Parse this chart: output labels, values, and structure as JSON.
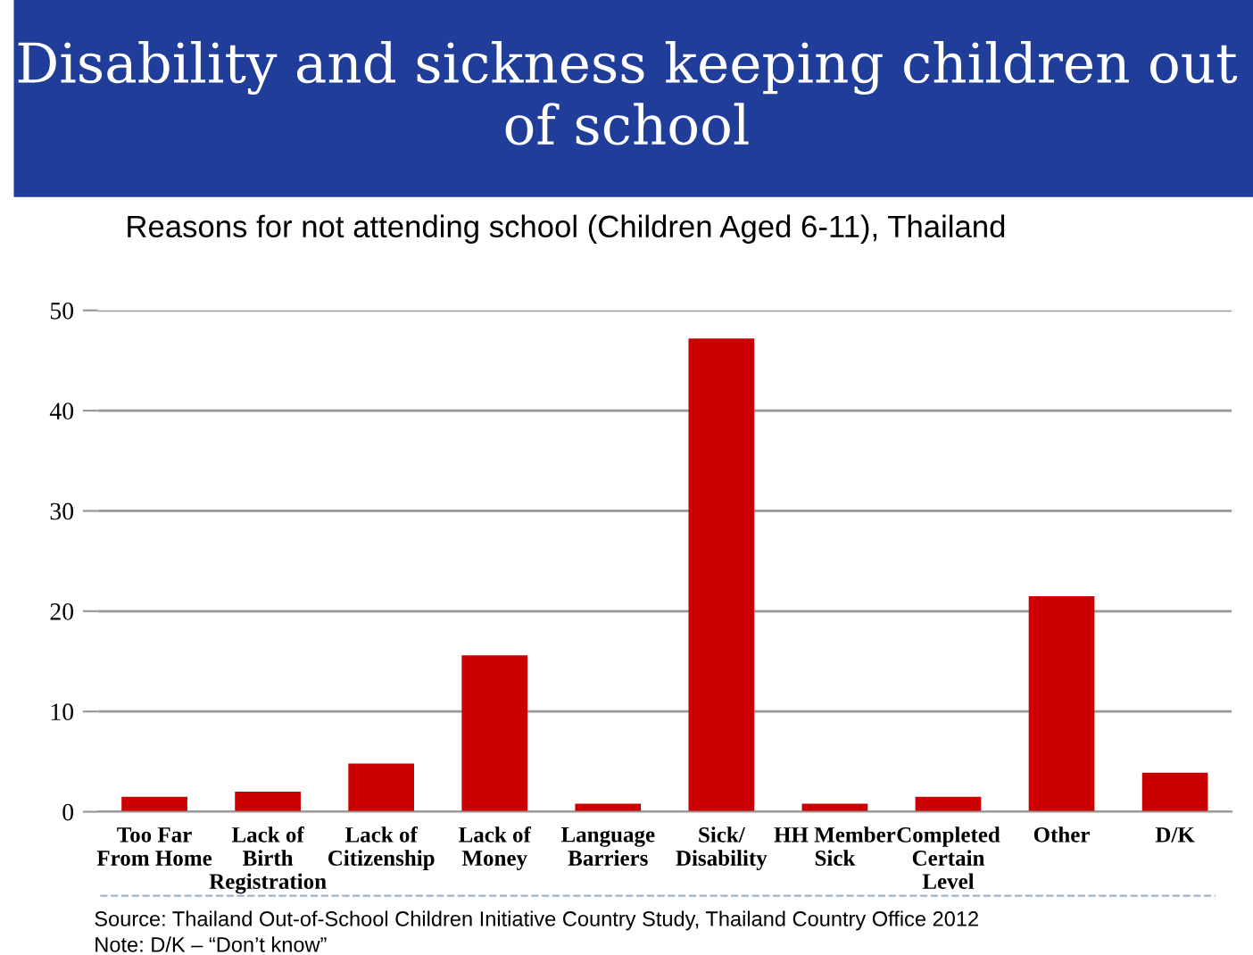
{
  "chart_data": {
    "type": "bar",
    "title": "Disability and sickness keeping children out of school",
    "subtitle": "Reasons for not attending school (Children Aged 6-11), Thailand",
    "categories": [
      "Too Far\nFrom Home",
      "Lack of\nBirth\nRegistration",
      "Lack of\nCitizenship",
      "Lack of\nMoney",
      "Language\nBarriers",
      "Sick/\nDisability",
      "HH Member\nSick",
      "Completed\nCertain\nLevel",
      "Other",
      "D/K"
    ],
    "values": [
      1.5,
      2.0,
      4.8,
      15.6,
      0.8,
      47.2,
      0.8,
      1.5,
      21.5,
      3.9
    ],
    "color": "#cc0000",
    "ylim": [
      0,
      50
    ],
    "yticks": [
      0,
      10,
      20,
      30,
      40,
      50
    ],
    "grid": "y",
    "legend": false,
    "annotations": [
      "Source: Thailand Out-of-School Children Initiative Country Study, Thailand Country Office 2012",
      "Note: D/K – “Don’t know”"
    ]
  }
}
